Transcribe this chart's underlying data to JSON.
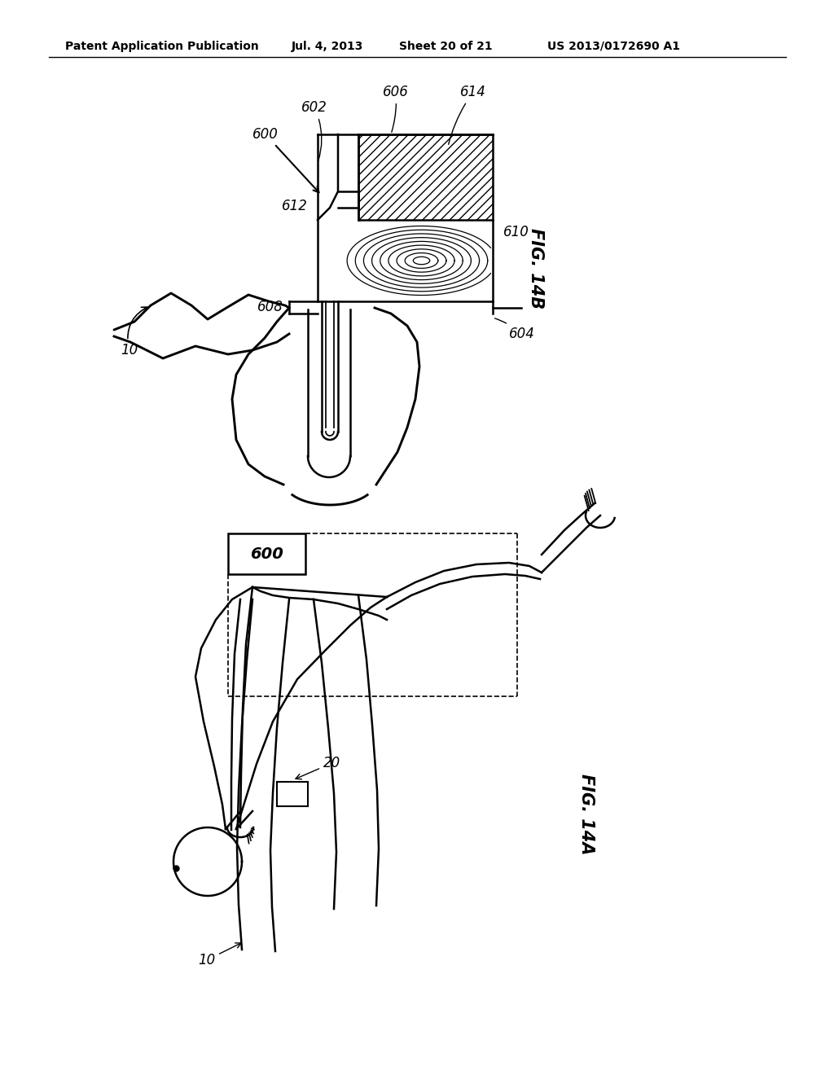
{
  "bg_color": "#ffffff",
  "header_text": "Patent Application Publication",
  "header_date": "Jul. 4, 2013",
  "header_sheet": "Sheet 20 of 21",
  "header_patent": "US 2013/0172690 A1",
  "fig14b_label": "FIG. 14B",
  "fig14a_label": "FIG. 14A",
  "label_600_top": "600",
  "label_602": "602",
  "label_606": "606",
  "label_614": "614",
  "label_612": "612",
  "label_610": "610",
  "label_608": "608",
  "label_604": "604",
  "label_10_top": "10",
  "label_600_box": "600",
  "label_20": "20",
  "label_10_bottom": "10"
}
